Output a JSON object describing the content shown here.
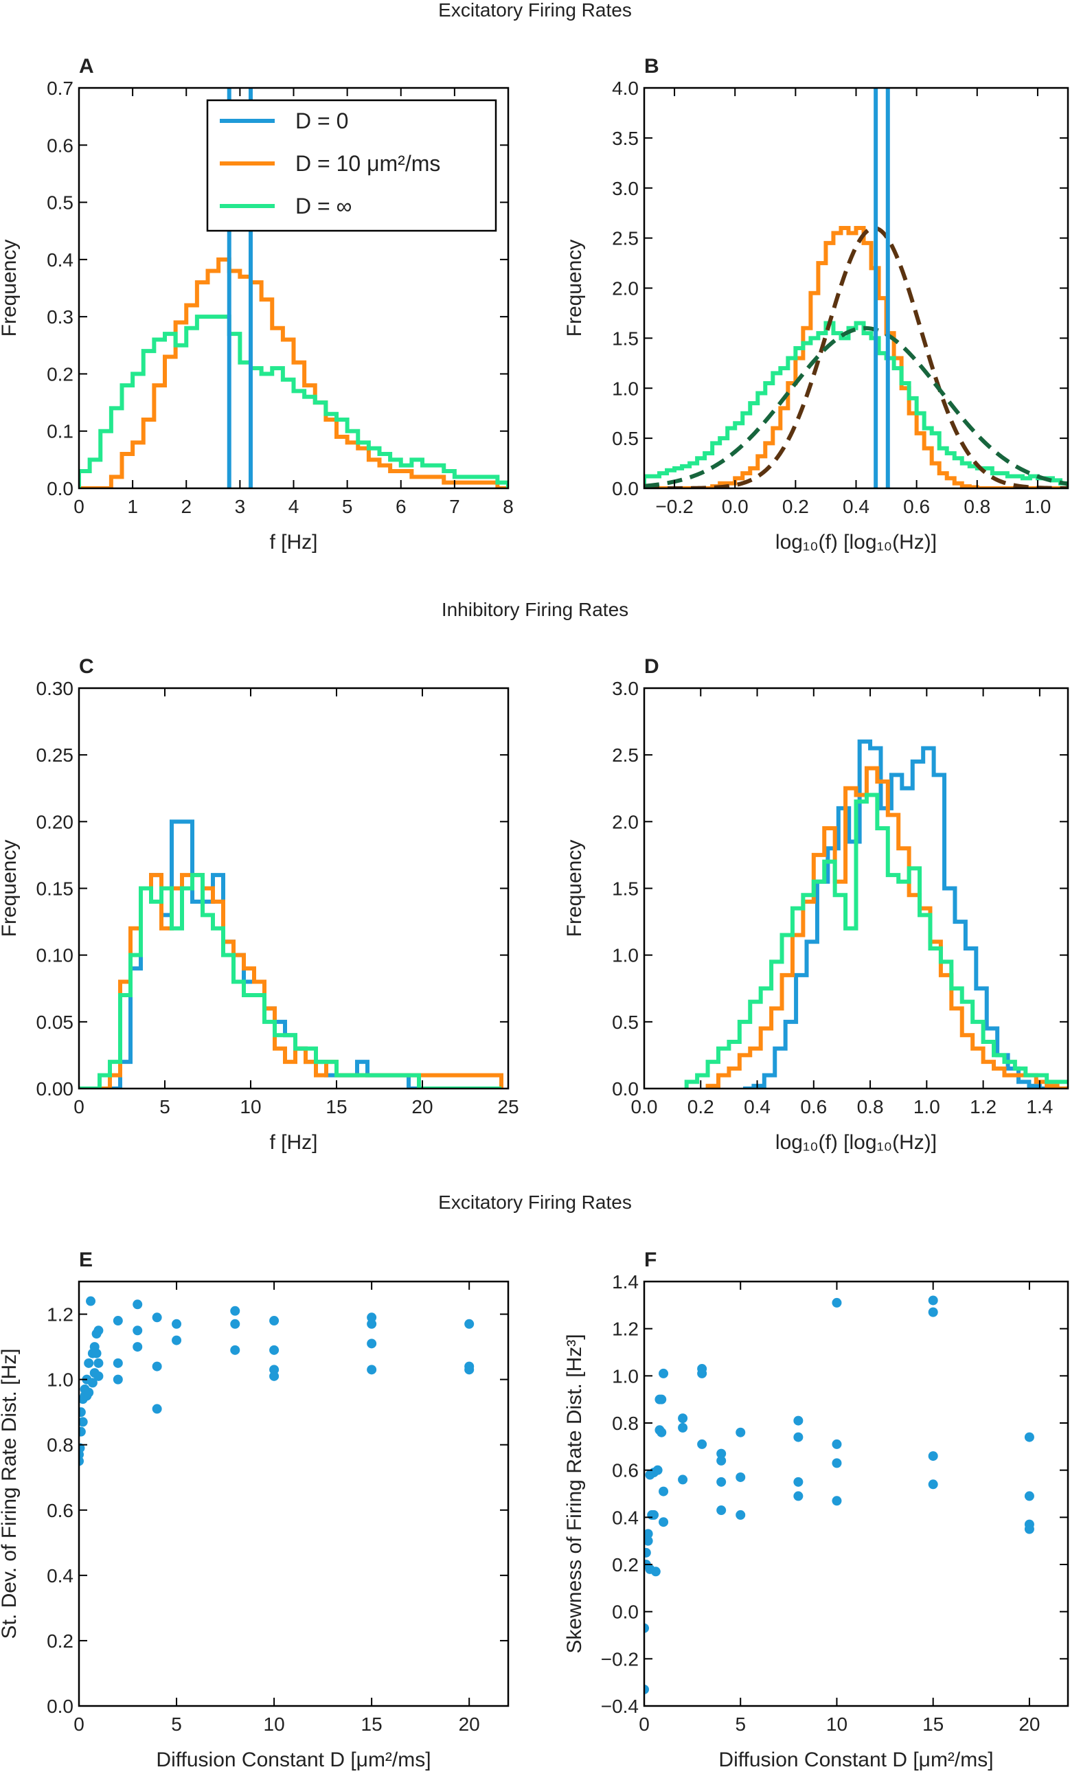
{
  "section_titles": [
    "Excitatory Firing Rates",
    "Inhibitory Firing Rates",
    "Excitatory Firing Rates"
  ],
  "colors": {
    "d0": "#1f9ad8",
    "d10": "#ff8a12",
    "dinf": "#24e88e",
    "fit_orange": "#5b3310",
    "fit_green": "#17653d",
    "scatter": "#1f9ad8",
    "axis": "#000000"
  },
  "legend": {
    "entries": [
      {
        "label": "D = 0",
        "color_key": "d0"
      },
      {
        "label": "D = 10 μm²/ms",
        "color_key": "d10"
      },
      {
        "label": "D = ∞",
        "color_key": "dinf"
      }
    ]
  },
  "chart_data": [
    {
      "id": "A",
      "panel_label": "A",
      "type": "histogram",
      "xlabel": "f [Hz]",
      "ylabel": "Frequency",
      "xlim": [
        0,
        8
      ],
      "ylim": [
        0,
        0.7
      ],
      "xticks": [
        "0",
        "1",
        "2",
        "3",
        "4",
        "5",
        "6",
        "7",
        "8"
      ],
      "yticks": [
        "0.0",
        "0.1",
        "0.2",
        "0.3",
        "0.4",
        "0.5",
        "0.6",
        "0.7"
      ],
      "vlines": {
        "name": "D = 0",
        "x": [
          2.8,
          3.2
        ],
        "color_key": "d0"
      },
      "series": [
        {
          "name": "D = 10 μm²/ms",
          "color_key": "d10",
          "x0": 0.0,
          "bin": 0.2,
          "values": [
            0,
            0,
            0,
            0.02,
            0.06,
            0.08,
            0.12,
            0.18,
            0.23,
            0.29,
            0.32,
            0.36,
            0.38,
            0.4,
            0.38,
            0.37,
            0.36,
            0.33,
            0.28,
            0.26,
            0.22,
            0.18,
            0.15,
            0.12,
            0.09,
            0.08,
            0.07,
            0.05,
            0.04,
            0.03,
            0.03,
            0.02,
            0.02,
            0.02,
            0.01,
            0.01,
            0.01,
            0.01,
            0.01,
            0.0
          ]
        },
        {
          "name": "D = ∞",
          "color_key": "dinf",
          "x0": 0.0,
          "bin": 0.2,
          "values": [
            0.03,
            0.05,
            0.1,
            0.14,
            0.18,
            0.2,
            0.24,
            0.26,
            0.27,
            0.25,
            0.28,
            0.3,
            0.3,
            0.3,
            0.27,
            0.22,
            0.21,
            0.2,
            0.21,
            0.19,
            0.17,
            0.16,
            0.15,
            0.13,
            0.12,
            0.1,
            0.08,
            0.07,
            0.06,
            0.05,
            0.04,
            0.05,
            0.04,
            0.04,
            0.03,
            0.02,
            0.02,
            0.02,
            0.02,
            0.01
          ]
        }
      ]
    },
    {
      "id": "B",
      "panel_label": "B",
      "type": "histogram",
      "xlabel": "log₁₀(f) [log₁₀(Hz)]",
      "ylabel": "Frequency",
      "xlim": [
        -0.3,
        1.1
      ],
      "ylim": [
        0,
        4.0
      ],
      "xticks": [
        "−0.2",
        "0.0",
        "0.2",
        "0.4",
        "0.6",
        "0.8",
        "1.0"
      ],
      "yticks": [
        "0.0",
        "0.5",
        "1.0",
        "1.5",
        "2.0",
        "2.5",
        "3.0",
        "3.5",
        "4.0"
      ],
      "vlines": {
        "name": "D = 0",
        "x": [
          0.465,
          0.505
        ],
        "color_key": "d0"
      },
      "series": [
        {
          "name": "D = 10 μm²/ms",
          "color_key": "d10",
          "x0": -0.3,
          "bin": 0.025,
          "values": [
            0,
            0,
            0,
            0,
            0,
            0,
            0,
            0,
            0,
            0.02,
            0.05,
            0.05,
            0.1,
            0.15,
            0.2,
            0.32,
            0.45,
            0.6,
            0.8,
            1.05,
            1.3,
            1.6,
            1.95,
            2.25,
            2.45,
            2.55,
            2.6,
            2.55,
            2.6,
            2.45,
            2.2,
            1.9,
            1.55,
            1.3,
            1.0,
            0.75,
            0.55,
            0.4,
            0.25,
            0.15,
            0.1,
            0.05,
            0.02,
            0.01,
            0,
            0,
            0,
            0,
            0,
            0,
            0,
            0,
            0,
            0,
            0,
            0
          ]
        },
        {
          "name": "D = ∞",
          "color_key": "dinf",
          "x0": -0.3,
          "bin": 0.025,
          "values": [
            0.12,
            0.12,
            0.15,
            0.18,
            0.2,
            0.22,
            0.25,
            0.3,
            0.35,
            0.45,
            0.5,
            0.6,
            0.65,
            0.75,
            0.85,
            0.95,
            1.05,
            1.15,
            1.2,
            1.3,
            1.4,
            1.45,
            1.5,
            1.55,
            1.65,
            1.55,
            1.5,
            1.6,
            1.65,
            1.55,
            1.5,
            1.35,
            1.3,
            1.2,
            1.05,
            0.9,
            0.75,
            0.6,
            0.55,
            0.4,
            0.35,
            0.3,
            0.25,
            0.22,
            0.2,
            0.2,
            0.15,
            0.15,
            0.12,
            0.12,
            0.1,
            0.12,
            0.1,
            0.1,
            0.08,
            0.05
          ]
        }
      ],
      "fits": [
        {
          "name": "D = 10 μm²/ms fit",
          "color_key": "fit_orange",
          "mu": 0.46,
          "sigma": 0.155,
          "amp": 2.6
        },
        {
          "name": "D = ∞ fit",
          "color_key": "fit_green",
          "mu": 0.43,
          "sigma": 0.25,
          "amp": 1.6
        }
      ]
    },
    {
      "id": "C",
      "panel_label": "C",
      "type": "histogram",
      "xlabel": "f [Hz]",
      "ylabel": "Frequency",
      "xlim": [
        0,
        25
      ],
      "ylim": [
        0,
        0.3
      ],
      "xticks": [
        "0",
        "5",
        "10",
        "15",
        "20",
        "25"
      ],
      "yticks": [
        "0.00",
        "0.05",
        "0.10",
        "0.15",
        "0.20",
        "0.25",
        "0.30"
      ],
      "series": [
        {
          "name": "D = 0",
          "color_key": "d0",
          "x0": 0.0,
          "bin": 0.6,
          "values": [
            0,
            0,
            0,
            0,
            0.02,
            0.09,
            0.15,
            0.16,
            0.13,
            0.2,
            0.2,
            0.14,
            0.14,
            0.16,
            0.11,
            0.1,
            0.08,
            0.08,
            0.06,
            0.05,
            0.04,
            0.03,
            0.02,
            0.02,
            0.01,
            0.01,
            0.01,
            0.02,
            0.01,
            0.01,
            0.01,
            0.01,
            0,
            0,
            0,
            0,
            0,
            0,
            0,
            0,
            0
          ]
        },
        {
          "name": "D = 10 μm²/ms",
          "color_key": "d10",
          "x0": 0.0,
          "bin": 0.6,
          "values": [
            0,
            0,
            0,
            0.01,
            0.08,
            0.12,
            0.15,
            0.16,
            0.12,
            0.15,
            0.16,
            0.16,
            0.15,
            0.14,
            0.11,
            0.1,
            0.09,
            0.08,
            0.06,
            0.03,
            0.02,
            0.03,
            0.02,
            0.01,
            0.02,
            0.01,
            0.01,
            0.01,
            0.01,
            0.01,
            0.01,
            0.01,
            0.01,
            0.01,
            0.01,
            0.01,
            0.01,
            0.01,
            0.01,
            0.01,
            0.01
          ]
        },
        {
          "name": "D = ∞",
          "color_key": "dinf",
          "x0": 0.0,
          "bin": 0.6,
          "values": [
            0,
            0,
            0.01,
            0.02,
            0.07,
            0.1,
            0.15,
            0.14,
            0.15,
            0.12,
            0.15,
            0.16,
            0.13,
            0.12,
            0.1,
            0.08,
            0.07,
            0.07,
            0.05,
            0.04,
            0.04,
            0.03,
            0.03,
            0.02,
            0.02,
            0.01,
            0.01,
            0.01,
            0.01,
            0.01,
            0.01,
            0.01,
            0.01,
            0,
            0,
            0,
            0,
            0,
            0,
            0,
            0
          ]
        }
      ]
    },
    {
      "id": "D",
      "panel_label": "D",
      "type": "histogram",
      "xlabel": "log₁₀(f) [log₁₀(Hz)]",
      "ylabel": "Frequency",
      "xlim": [
        0.0,
        1.5
      ],
      "ylim": [
        0,
        3.0
      ],
      "xticks": [
        "0.0",
        "0.2",
        "0.4",
        "0.6",
        "0.8",
        "1.0",
        "1.2",
        "1.4"
      ],
      "yticks": [
        "0.0",
        "0.5",
        "1.0",
        "1.5",
        "2.0",
        "2.5",
        "3.0"
      ],
      "series": [
        {
          "name": "D = 0",
          "color_key": "d0",
          "x0": 0.35,
          "bin": 0.0375,
          "values": [
            0,
            0.02,
            0.1,
            0.3,
            0.5,
            0.85,
            1.1,
            1.55,
            1.8,
            2.1,
            1.85,
            2.6,
            2.55,
            2.1,
            2.35,
            2.25,
            2.45,
            2.55,
            2.35,
            1.5,
            1.25,
            1.05,
            0.75,
            0.45,
            0.25,
            0.15,
            0.05,
            0.02,
            0
          ]
        },
        {
          "name": "D = 10 μm²/ms",
          "color_key": "d10",
          "x0": 0.225,
          "bin": 0.0375,
          "values": [
            0.02,
            0.1,
            0.15,
            0.25,
            0.3,
            0.45,
            0.6,
            0.85,
            1.15,
            1.4,
            1.75,
            1.95,
            1.55,
            2.25,
            2.2,
            2.4,
            2.3,
            2.05,
            1.8,
            1.45,
            1.35,
            1.1,
            0.85,
            0.6,
            0.4,
            0.3,
            0.2,
            0.15,
            0.1,
            0.1,
            0.1,
            0.05,
            0.02,
            0
          ]
        },
        {
          "name": "D = ∞",
          "color_key": "dinf",
          "x0": 0.15,
          "bin": 0.0375,
          "values": [
            0.05,
            0.1,
            0.2,
            0.3,
            0.35,
            0.5,
            0.65,
            0.75,
            0.95,
            1.15,
            1.35,
            1.45,
            1.55,
            1.7,
            1.45,
            1.2,
            2.15,
            2.2,
            1.95,
            1.6,
            1.55,
            1.65,
            1.3,
            1.05,
            0.95,
            0.75,
            0.65,
            0.5,
            0.35,
            0.25,
            0.2,
            0.15,
            0.1,
            0.1,
            0.05,
            0.05,
            0.05,
            0.02,
            0
          ]
        }
      ]
    },
    {
      "id": "E",
      "panel_label": "E",
      "type": "scatter",
      "xlabel": "Diffusion Constant D [μm²/ms]",
      "ylabel": "St. Dev. of Firing Rate Dist. [Hz]",
      "xlim": [
        0,
        22
      ],
      "ylim": [
        0,
        1.3
      ],
      "xticks": [
        "0",
        "5",
        "10",
        "15",
        "20"
      ],
      "yticks": [
        "0.0",
        "0.2",
        "0.4",
        "0.6",
        "0.8",
        "1.0",
        "1.2"
      ],
      "points": [
        [
          0,
          0.75
        ],
        [
          0,
          0.77
        ],
        [
          0.05,
          0.79
        ],
        [
          0.1,
          0.84
        ],
        [
          0.1,
          0.9
        ],
        [
          0.2,
          0.87
        ],
        [
          0.2,
          0.94
        ],
        [
          0.3,
          0.95
        ],
        [
          0.3,
          0.97
        ],
        [
          0.4,
          0.95
        ],
        [
          0.4,
          1.0
        ],
        [
          0.5,
          0.96
        ],
        [
          0.5,
          1.05
        ],
        [
          0.6,
          1.24
        ],
        [
          0.7,
          0.99
        ],
        [
          0.7,
          1.08
        ],
        [
          0.8,
          1.02
        ],
        [
          0.8,
          1.1
        ],
        [
          0.9,
          1.08
        ],
        [
          0.9,
          1.14
        ],
        [
          1.0,
          1.15
        ],
        [
          1.0,
          1.05
        ],
        [
          1.0,
          1.01
        ],
        [
          2,
          1.18
        ],
        [
          2,
          1.05
        ],
        [
          2,
          1.0
        ],
        [
          3,
          1.23
        ],
        [
          3,
          1.15
        ],
        [
          3,
          1.1
        ],
        [
          4,
          1.19
        ],
        [
          4,
          1.04
        ],
        [
          4,
          0.91
        ],
        [
          5,
          1.17
        ],
        [
          5,
          1.12
        ],
        [
          8,
          1.21
        ],
        [
          8,
          1.17
        ],
        [
          8,
          1.09
        ],
        [
          10,
          1.18
        ],
        [
          10,
          1.09
        ],
        [
          10,
          1.03
        ],
        [
          10,
          1.01
        ],
        [
          15,
          1.19
        ],
        [
          15,
          1.17
        ],
        [
          15,
          1.11
        ],
        [
          15,
          1.03
        ],
        [
          20,
          1.17
        ],
        [
          20,
          1.04
        ],
        [
          20,
          1.03
        ]
      ]
    },
    {
      "id": "F",
      "panel_label": "F",
      "type": "scatter",
      "xlabel": "Diffusion Constant D [μm²/ms]",
      "ylabel": "Skewness of Firing Rate Dist. [Hz³]",
      "xlim": [
        0,
        22
      ],
      "ylim": [
        -0.4,
        1.4
      ],
      "xticks": [
        "0",
        "5",
        "10",
        "15",
        "20"
      ],
      "yticks": [
        "−0.4",
        "−0.2",
        "0.0",
        "0.2",
        "0.4",
        "0.6",
        "0.8",
        "1.0",
        "1.2",
        "1.4"
      ],
      "points": [
        [
          0,
          -0.33
        ],
        [
          0,
          -0.07
        ],
        [
          0.1,
          0.2
        ],
        [
          0.1,
          0.25
        ],
        [
          0.2,
          0.3
        ],
        [
          0.2,
          0.33
        ],
        [
          0.3,
          0.18
        ],
        [
          0.3,
          0.58
        ],
        [
          0.4,
          0.41
        ],
        [
          0.5,
          0.41
        ],
        [
          0.5,
          0.59
        ],
        [
          0.6,
          0.17
        ],
        [
          0.7,
          0.6
        ],
        [
          0.8,
          0.77
        ],
        [
          0.8,
          0.9
        ],
        [
          0.9,
          0.76
        ],
        [
          0.9,
          0.9
        ],
        [
          1.0,
          1.01
        ],
        [
          1.0,
          0.51
        ],
        [
          1.0,
          0.38
        ],
        [
          2,
          0.82
        ],
        [
          2,
          0.78
        ],
        [
          2,
          0.56
        ],
        [
          3,
          1.03
        ],
        [
          3,
          1.01
        ],
        [
          3,
          0.71
        ],
        [
          4,
          0.67
        ],
        [
          4,
          0.64
        ],
        [
          4,
          0.55
        ],
        [
          4,
          0.43
        ],
        [
          5,
          0.76
        ],
        [
          5,
          0.57
        ],
        [
          5,
          0.41
        ],
        [
          8,
          0.81
        ],
        [
          8,
          0.74
        ],
        [
          8,
          0.55
        ],
        [
          8,
          0.49
        ],
        [
          10,
          1.31
        ],
        [
          10,
          0.71
        ],
        [
          10,
          0.63
        ],
        [
          10,
          0.47
        ],
        [
          15,
          1.32
        ],
        [
          15,
          1.27
        ],
        [
          15,
          0.66
        ],
        [
          15,
          0.54
        ],
        [
          20,
          0.74
        ],
        [
          20,
          0.49
        ],
        [
          20,
          0.37
        ],
        [
          20,
          0.35
        ]
      ]
    }
  ]
}
